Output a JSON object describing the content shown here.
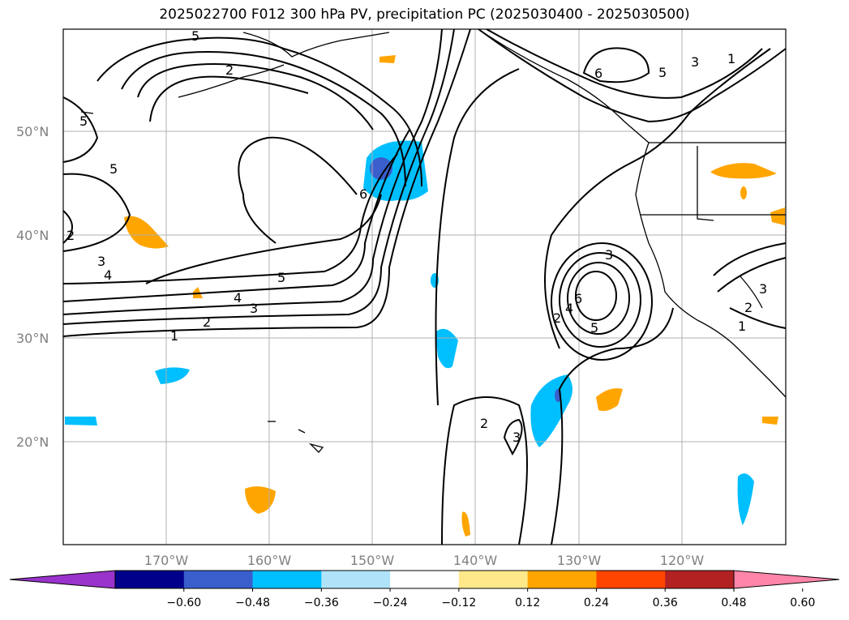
{
  "title": "2025022700 F012 300 hPa PV, precipitation PC (2025030400 - 2025030500)",
  "lat_labels": [
    "50°N",
    "40°N",
    "30°N",
    "20°N"
  ],
  "lon_labels": [
    "170°W",
    "160°W",
    "150°W",
    "140°W",
    "130°W",
    "120°W"
  ],
  "contour_labels": [
    {
      "text": "5"
    },
    {
      "text": "2"
    },
    {
      "text": "5"
    },
    {
      "text": "5"
    },
    {
      "text": "2"
    },
    {
      "text": "3"
    },
    {
      "text": "4"
    },
    {
      "text": "6"
    },
    {
      "text": "5"
    },
    {
      "text": "4"
    },
    {
      "text": "3"
    },
    {
      "text": "2"
    },
    {
      "text": "1"
    },
    {
      "text": "6"
    },
    {
      "text": "5"
    },
    {
      "text": "3"
    },
    {
      "text": "1"
    },
    {
      "text": "3"
    },
    {
      "text": "6"
    },
    {
      "text": "4"
    },
    {
      "text": "2"
    },
    {
      "text": "5"
    },
    {
      "text": "2"
    },
    {
      "text": "3"
    },
    {
      "text": "3"
    },
    {
      "text": "2"
    },
    {
      "text": "1"
    }
  ],
  "colorbar": {
    "ticks": [
      "−0.60",
      "−0.48",
      "−0.36",
      "−0.24",
      "−0.12",
      "0.12",
      "0.24",
      "0.36",
      "0.48",
      "0.60"
    ],
    "colors": [
      "#9933cc",
      "#00008b",
      "#3a5fcd",
      "#00bfff",
      "#afe3fa",
      "#ffffff",
      "#ffe88a",
      "#ffa500",
      "#ff4500",
      "#b22222",
      "#ff85a9"
    ]
  }
}
